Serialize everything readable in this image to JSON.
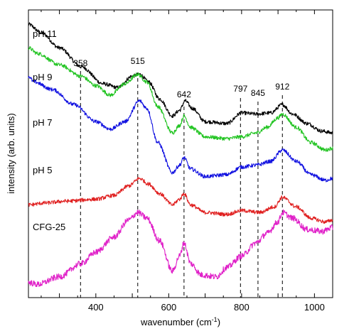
{
  "chart_data": {
    "type": "line",
    "title": "",
    "xlabel": "wavenumber (cm",
    "xlabel_sup": "-1",
    "xlabel_end": ")",
    "ylabel": "intensity (arb. units)",
    "xlim": [
      215,
      1050
    ],
    "xticks": [
      {
        "value": 400,
        "label": "400"
      },
      {
        "value": 600,
        "label": "600"
      },
      {
        "value": 800,
        "label": "800"
      },
      {
        "value": 1000,
        "label": "1000"
      }
    ],
    "yticks_shown": false,
    "grid": false,
    "legend": "none",
    "peaks": [
      {
        "value": 358,
        "label": "358"
      },
      {
        "value": 515,
        "label": "515"
      },
      {
        "value": 642,
        "label": "642"
      },
      {
        "value": 797,
        "label": "797"
      },
      {
        "value": 845,
        "label": "845"
      },
      {
        "value": 912,
        "label": "912"
      }
    ],
    "series": [
      {
        "name": "pH 11",
        "color": "#000000",
        "x": [
          215,
          250,
          300,
          360,
          420,
          460,
          500,
          520,
          545,
          575,
          610,
          630,
          645,
          665,
          700,
          760,
          800,
          840,
          880,
          912,
          940,
          980,
          1020,
          1050
        ],
        "y": [
          30.2,
          28.0,
          24.0,
          19.0,
          14.5,
          13.5,
          16.5,
          17.0,
          15.0,
          10.5,
          6.0,
          7.5,
          10.0,
          8.0,
          4.5,
          4.0,
          6.8,
          6.5,
          6.8,
          9.0,
          6.5,
          4.0,
          2.0,
          1.5
        ]
      },
      {
        "name": "pH 9",
        "color": "#22c422",
        "x": [
          215,
          240,
          300,
          360,
          400,
          440,
          480,
          515,
          540,
          570,
          610,
          630,
          642,
          660,
          700,
          760,
          800,
          840,
          870,
          900,
          912,
          950,
          990,
          1030,
          1050
        ],
        "y": [
          24.0,
          22.5,
          19.5,
          16.5,
          14.0,
          11.5,
          14.5,
          17.0,
          15.0,
          8.5,
          1.5,
          3.5,
          6.0,
          3.0,
          0.5,
          0.0,
          0.5,
          1.5,
          3.0,
          5.5,
          6.5,
          3.0,
          -1.0,
          -3.0,
          -2.5
        ]
      },
      {
        "name": "pH 7",
        "color": "#1010e0",
        "x": [
          215,
          230,
          280,
          340,
          400,
          440,
          480,
          520,
          540,
          570,
          610,
          630,
          642,
          660,
          700,
          760,
          800,
          840,
          880,
          912,
          950,
          990,
          1030,
          1050
        ],
        "y": [
          16.5,
          15.0,
          13.0,
          9.0,
          4.5,
          2.5,
          4.5,
          10.0,
          8.0,
          -1.0,
          -9.0,
          -7.0,
          -5.0,
          -8.0,
          -10.0,
          -9.5,
          -7.5,
          -7.0,
          -6.0,
          -3.0,
          -6.0,
          -9.5,
          -11.0,
          -10.5
        ]
      },
      {
        "name": "pH 5",
        "color": "#e02020",
        "x": [
          215,
          260,
          320,
          400,
          450,
          490,
          520,
          545,
          575,
          610,
          630,
          642,
          660,
          700,
          760,
          800,
          850,
          890,
          912,
          950,
          990,
          1030,
          1050
        ],
        "y": [
          -17.5,
          -17.0,
          -16.5,
          -16.0,
          -15.0,
          -12.5,
          -10.5,
          -12.0,
          -14.5,
          -17.5,
          -16.0,
          -14.5,
          -17.5,
          -19.5,
          -20.0,
          -19.0,
          -19.5,
          -18.0,
          -15.5,
          -18.0,
          -21.0,
          -22.0,
          -21.5
        ]
      },
      {
        "name": "CFG-25",
        "color": "#e020c8",
        "x": [
          215,
          240,
          300,
          360,
          400,
          450,
          490,
          515,
          540,
          575,
          610,
          630,
          642,
          660,
          690,
          730,
          760,
          800,
          840,
          870,
          900,
          912,
          940,
          980,
          1020,
          1050
        ],
        "y": [
          -38.0,
          -38.5,
          -36.5,
          -33.0,
          -30.0,
          -26.0,
          -21.5,
          -19.5,
          -21.0,
          -27.0,
          -35.0,
          -31.0,
          -27.5,
          -33.0,
          -36.0,
          -36.5,
          -34.0,
          -31.0,
          -27.5,
          -25.0,
          -22.0,
          -19.5,
          -21.0,
          -24.0,
          -24.5,
          -23.5
        ]
      }
    ],
    "ylim": [
      -42,
      34
    ]
  }
}
